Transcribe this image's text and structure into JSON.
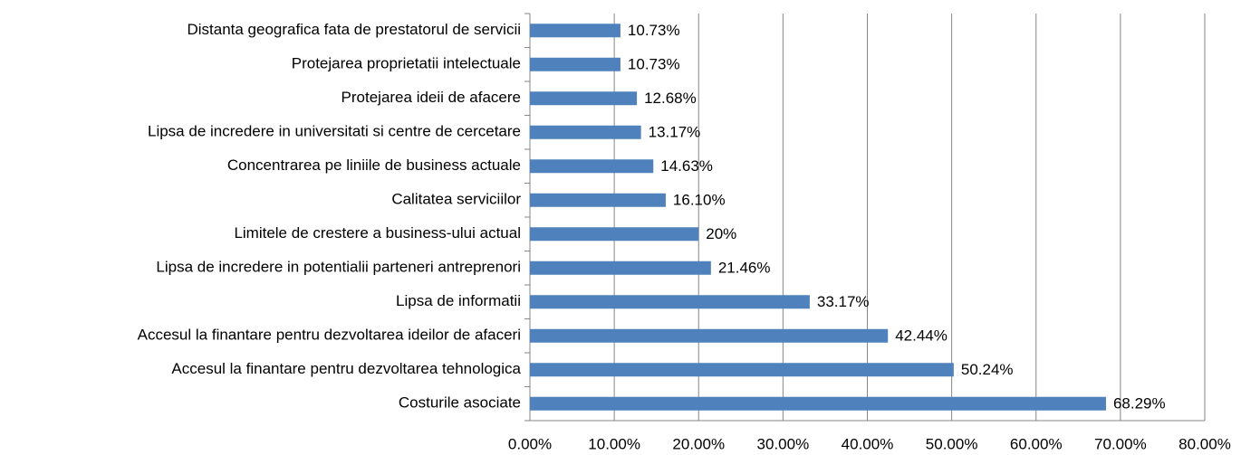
{
  "chart_data": {
    "type": "bar",
    "orientation": "horizontal",
    "categories": [
      "Distanta geografica fata de prestatorul de servicii",
      "Protejarea proprietatii intelectuale",
      "Protejarea ideii de afacere",
      "Lipsa de incredere in universitati si centre de cercetare",
      "Concentrarea pe liniile de business actuale",
      "Calitatea serviciilor",
      "Limitele de crestere a business-ului actual",
      "Lipsa de incredere in potentialii parteneri antreprenori",
      "Lipsa de informatii",
      "Accesul la finantare pentru dezvoltarea ideilor de afaceri",
      "Accesul la finantare pentru dezvoltarea tehnologica",
      "Costurile asociate"
    ],
    "values": [
      10.73,
      10.73,
      12.68,
      13.17,
      14.63,
      16.1,
      20,
      21.46,
      33.17,
      42.44,
      50.24,
      68.29
    ],
    "value_labels": [
      "10.73%",
      "10.73%",
      "12.68%",
      "13.17%",
      "14.63%",
      "16.10%",
      "20%",
      "21.46%",
      "33.17%",
      "42.44%",
      "50.24%",
      "68.29%"
    ],
    "color": "#4f81bd",
    "xlim": [
      0,
      80
    ],
    "xticks": [
      {
        "value": 0,
        "label": "0.00%"
      },
      {
        "value": 10,
        "label": "10.00%"
      },
      {
        "value": 20,
        "label": "20.00%"
      },
      {
        "value": 30,
        "label": "30.00%"
      },
      {
        "value": 40,
        "label": "40.00%"
      },
      {
        "value": 50,
        "label": "50.00%"
      },
      {
        "value": 60,
        "label": "60.00%"
      },
      {
        "value": 70,
        "label": "70.00%"
      },
      {
        "value": 80,
        "label": "80.00%"
      }
    ],
    "grid": true
  }
}
